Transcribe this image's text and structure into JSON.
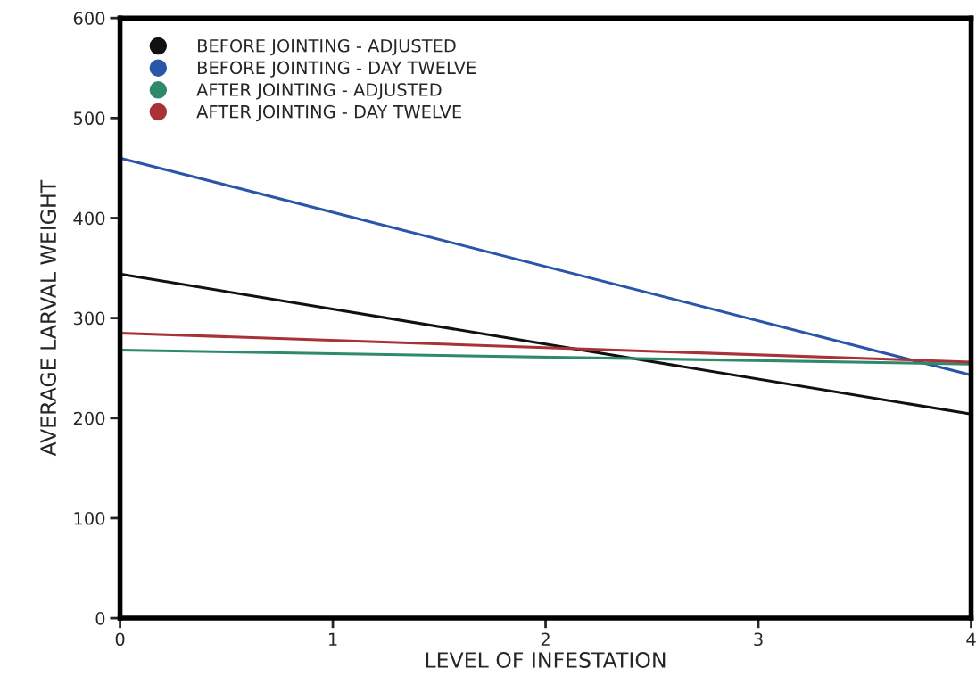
{
  "chart_data": {
    "type": "line",
    "xlabel": "LEVEL OF INFESTATION",
    "ylabel": "AVERAGE LARVAL WEIGHT",
    "x": [
      0,
      4
    ],
    "series": [
      {
        "name": "BEFORE JOINTING - ADJUSTED",
        "color": "#111111",
        "values": [
          344,
          204
        ]
      },
      {
        "name": "BEFORE JOINTING - DAY TWELVE",
        "color": "#2a55a8",
        "values": [
          460,
          243
        ]
      },
      {
        "name": "AFTER JOINTING - ADJUSTED",
        "color": "#2e8a6a",
        "values": [
          268,
          254
        ]
      },
      {
        "name": "AFTER JOINTING - DAY TWELVE",
        "color": "#a83238",
        "values": [
          285,
          256
        ]
      }
    ],
    "xlim": [
      0,
      4
    ],
    "xticks": [
      0,
      1,
      2,
      3,
      4
    ],
    "ylim": [
      0,
      600
    ],
    "yticks": [
      0,
      100,
      200,
      300,
      400,
      500,
      600
    ],
    "grid": false,
    "legend": "top left",
    "marker": "none",
    "line_style": "solid"
  }
}
